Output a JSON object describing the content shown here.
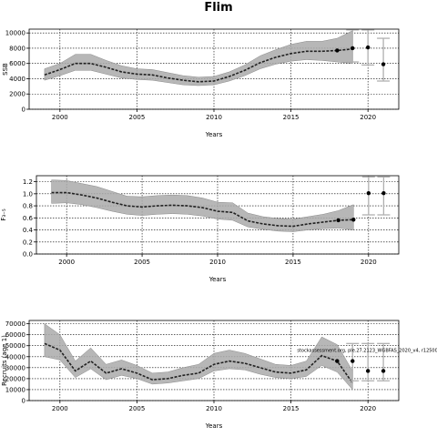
{
  "figure_title": "Flim",
  "chart_data": [
    {
      "type": "line",
      "title": "",
      "xlabel": "Years",
      "ylabel": "SSB",
      "xlim": [
        1998,
        2022
      ],
      "ylim": [
        0,
        10500
      ],
      "yticks": [
        0,
        2000,
        4000,
        6000,
        8000,
        10000
      ],
      "yticklabels": [
        "0",
        "2000",
        "4000",
        "6000",
        "8000",
        "10000"
      ],
      "xticks": [
        2000,
        2005,
        2010,
        2015,
        2020
      ],
      "xticklabels": [
        "2000",
        "2005",
        "2010",
        "2015",
        "2020"
      ],
      "grid": true,
      "years": [
        1999,
        2000,
        2001,
        2002,
        2003,
        2004,
        2005,
        2006,
        2007,
        2008,
        2009,
        2010,
        2011,
        2012,
        2013,
        2014,
        2015,
        2016,
        2017,
        2018,
        2019
      ],
      "series": [
        {
          "values": [
            4500,
            5200,
            6000,
            6000,
            5500,
            4900,
            4600,
            4500,
            4100,
            3800,
            3600,
            3700,
            4300,
            5100,
            6100,
            6800,
            7300,
            7600,
            7600,
            7700,
            7900
          ],
          "lower": [
            3800,
            4400,
            5100,
            5100,
            4600,
            4100,
            3900,
            3800,
            3500,
            3200,
            3100,
            3200,
            3700,
            4400,
            5300,
            5900,
            6300,
            6500,
            6400,
            6200,
            6000
          ],
          "upper": [
            5300,
            6000,
            7200,
            7200,
            6400,
            5700,
            5300,
            5200,
            4800,
            4400,
            4200,
            4300,
            4900,
            5800,
            7000,
            7800,
            8500,
            8900,
            8900,
            9300,
            10300
          ]
        }
      ],
      "points": [
        {
          "x": 2018,
          "y": 7700
        },
        {
          "x": 2019,
          "y": 8000
        },
        {
          "x": 2020,
          "y": 8100
        },
        {
          "x": 2021,
          "y": 5900
        }
      ],
      "errorbars": [
        {
          "x": 2019,
          "low": 6200,
          "high": 10400
        },
        {
          "x": 2020,
          "low": 5800,
          "high": 10400
        },
        {
          "x": 2021,
          "low": 3700,
          "high": 9300
        }
      ]
    },
    {
      "type": "line",
      "title": "",
      "xlabel": "Years",
      "ylabel": "F₃₋₅",
      "xlim": [
        1998,
        2022
      ],
      "ylim": [
        0,
        1.3
      ],
      "yticks": [
        0,
        0.2,
        0.4,
        0.6,
        0.8,
        1.0,
        1.2
      ],
      "yticklabels": [
        "0.0",
        "0.2",
        "0.4",
        "0.6",
        "0.8",
        "1.0",
        "1.2"
      ],
      "xticks": [
        2000,
        2005,
        2010,
        2015,
        2020
      ],
      "xticklabels": [
        "2000",
        "2005",
        "2010",
        "2015",
        "2020"
      ],
      "grid": true,
      "years": [
        1999,
        2000,
        2001,
        2002,
        2003,
        2004,
        2005,
        2006,
        2007,
        2008,
        2009,
        2010,
        2011,
        2012,
        2013,
        2014,
        2015,
        2016,
        2017,
        2018,
        2019
      ],
      "series": [
        {
          "values": [
            1.02,
            1.02,
            0.98,
            0.93,
            0.86,
            0.8,
            0.78,
            0.8,
            0.81,
            0.8,
            0.77,
            0.71,
            0.69,
            0.55,
            0.5,
            0.47,
            0.46,
            0.5,
            0.53,
            0.56,
            0.57
          ],
          "lower": [
            0.84,
            0.85,
            0.82,
            0.77,
            0.71,
            0.66,
            0.64,
            0.66,
            0.67,
            0.66,
            0.63,
            0.58,
            0.56,
            0.45,
            0.41,
            0.38,
            0.37,
            0.4,
            0.42,
            0.43,
            0.4
          ],
          "upper": [
            1.23,
            1.22,
            1.17,
            1.12,
            1.04,
            0.96,
            0.95,
            0.97,
            0.98,
            0.97,
            0.93,
            0.86,
            0.85,
            0.68,
            0.62,
            0.59,
            0.58,
            0.62,
            0.66,
            0.72,
            0.82
          ]
        }
      ],
      "points": [
        {
          "x": 2018,
          "y": 0.56
        },
        {
          "x": 2019,
          "y": 0.57
        },
        {
          "x": 2020,
          "y": 1.01
        },
        {
          "x": 2021,
          "y": 1.01
        }
      ],
      "errorbars": [
        {
          "x": 2020,
          "low": 0.65,
          "high": 1.28
        },
        {
          "x": 2021,
          "low": 0.65,
          "high": 1.28
        }
      ]
    },
    {
      "type": "line",
      "title": "",
      "xlabel": "Years",
      "ylabel": "Recruits (age 1)",
      "xlim": [
        1998,
        2022
      ],
      "ylim": [
        0,
        73000
      ],
      "yticks": [
        0,
        10000,
        20000,
        30000,
        40000,
        50000,
        60000,
        70000
      ],
      "yticklabels": [
        "0",
        "10000",
        "20000",
        "30000",
        "40000",
        "50000",
        "60000",
        "70000"
      ],
      "xticks": [
        2000,
        2005,
        2010,
        2015,
        2020
      ],
      "xticklabels": [
        "2000",
        "2005",
        "2010",
        "2015",
        "2020"
      ],
      "grid": true,
      "years": [
        1999,
        2000,
        2001,
        2002,
        2003,
        2004,
        2005,
        2006,
        2007,
        2008,
        2009,
        2010,
        2011,
        2012,
        2013,
        2014,
        2015,
        2016,
        2017,
        2018,
        2019
      ],
      "series": [
        {
          "values": [
            52000,
            46000,
            27000,
            36000,
            25000,
            29000,
            25000,
            19000,
            20000,
            23000,
            25000,
            33000,
            36000,
            34000,
            30000,
            26000,
            25000,
            28000,
            41000,
            36000,
            16000
          ],
          "lower": [
            40000,
            37000,
            21000,
            29000,
            19000,
            23000,
            20000,
            15000,
            16000,
            18000,
            20000,
            27000,
            29000,
            28000,
            24000,
            21000,
            20000,
            22000,
            32000,
            26000,
            10000
          ],
          "upper": [
            70000,
            60000,
            36000,
            48000,
            33000,
            37000,
            32000,
            25000,
            26000,
            30000,
            33000,
            43000,
            46000,
            43000,
            38000,
            33000,
            32000,
            36000,
            58000,
            51000,
            27000
          ]
        }
      ],
      "points": [
        {
          "x": 2018,
          "y": 36000
        },
        {
          "x": 2019,
          "y": 36000
        },
        {
          "x": 2020,
          "y": 27000
        },
        {
          "x": 2021,
          "y": 27000
        }
      ],
      "errorbars": [
        {
          "x": 2019,
          "low": 18000,
          "high": 52000
        },
        {
          "x": 2020,
          "low": 18000,
          "high": 52000
        },
        {
          "x": 2021,
          "low": 18000,
          "high": 52000
        }
      ],
      "annotation": "stockassessment.org, ple.27.2123_WGBFAS_2020_v4, r12500 , git: 5b33"
    }
  ],
  "colors": {
    "band": "#aaaaaa",
    "band_edge": "#8a8a8a",
    "line": "#222222",
    "errorbar": "#b0b0b0",
    "grid": "#000000"
  }
}
